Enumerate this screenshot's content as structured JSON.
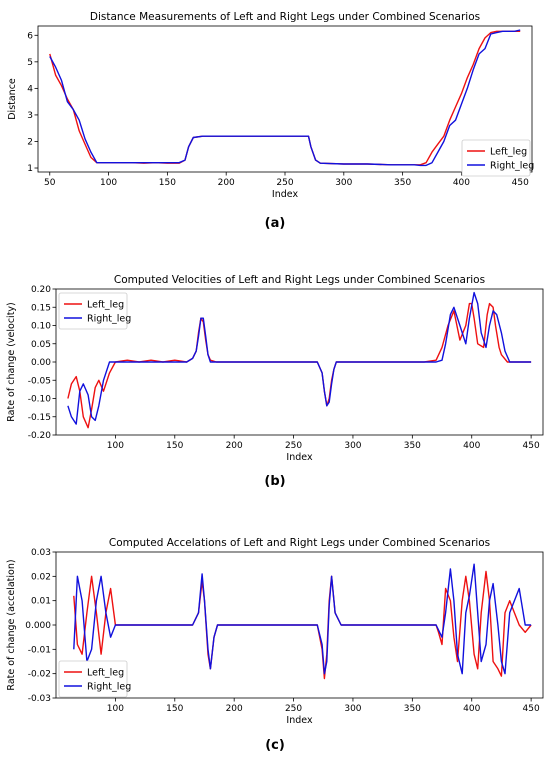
{
  "colors": {
    "Left_leg": "#ee1111",
    "Right_leg": "#1111dd"
  },
  "panel_labels": [
    "(a)",
    "(b)",
    "(c)"
  ],
  "chart_data": [
    {
      "type": "line",
      "title": "Distance Measurements of Left and Right Legs under Combined Scenarios",
      "xlabel": "Index",
      "ylabel": "Distance",
      "xlim": [
        40,
        460
      ],
      "ylim": [
        0.85,
        6.35
      ],
      "xticks": [
        50,
        100,
        150,
        200,
        250,
        300,
        350,
        400,
        450
      ],
      "yticks": [
        1,
        2,
        3,
        4,
        5,
        6
      ],
      "legend": "lower-right",
      "grid": false,
      "series": [
        {
          "name": "Left_leg",
          "color": "#ee1111",
          "x": [
            50,
            55,
            60,
            65,
            70,
            75,
            80,
            85,
            90,
            100,
            110,
            120,
            130,
            140,
            150,
            160,
            165,
            168,
            172,
            180,
            200,
            220,
            240,
            260,
            270,
            272,
            276,
            280,
            300,
            320,
            340,
            360,
            365,
            370,
            375,
            380,
            385,
            390,
            395,
            400,
            405,
            410,
            415,
            420,
            425,
            430,
            435,
            440,
            445,
            450
          ],
          "y": [
            5.3,
            4.5,
            4.1,
            3.6,
            3.2,
            2.4,
            1.9,
            1.4,
            1.2,
            1.2,
            1.2,
            1.2,
            1.18,
            1.2,
            1.18,
            1.18,
            1.3,
            1.8,
            2.15,
            2.2,
            2.2,
            2.2,
            2.2,
            2.2,
            2.2,
            1.8,
            1.3,
            1.18,
            1.15,
            1.15,
            1.12,
            1.12,
            1.12,
            1.2,
            1.6,
            1.9,
            2.2,
            2.8,
            3.3,
            3.8,
            4.4,
            4.9,
            5.5,
            5.9,
            6.1,
            6.15,
            6.15,
            6.15,
            6.15,
            6.15
          ]
        },
        {
          "name": "Right_leg",
          "color": "#1111dd",
          "x": [
            50,
            55,
            60,
            65,
            70,
            75,
            80,
            85,
            90,
            100,
            110,
            120,
            130,
            140,
            150,
            160,
            165,
            168,
            172,
            180,
            200,
            220,
            240,
            260,
            270,
            272,
            276,
            280,
            300,
            320,
            340,
            360,
            365,
            370,
            375,
            380,
            385,
            390,
            395,
            400,
            405,
            410,
            415,
            420,
            425,
            430,
            435,
            440,
            445,
            450
          ],
          "y": [
            5.2,
            4.8,
            4.3,
            3.5,
            3.2,
            2.8,
            2.1,
            1.6,
            1.2,
            1.2,
            1.2,
            1.2,
            1.2,
            1.2,
            1.2,
            1.2,
            1.3,
            1.8,
            2.15,
            2.2,
            2.2,
            2.2,
            2.2,
            2.2,
            2.2,
            1.8,
            1.3,
            1.18,
            1.15,
            1.15,
            1.12,
            1.12,
            1.1,
            1.1,
            1.2,
            1.6,
            2.0,
            2.6,
            2.8,
            3.4,
            4.0,
            4.7,
            5.3,
            5.5,
            6.05,
            6.1,
            6.15,
            6.15,
            6.15,
            6.2
          ]
        }
      ]
    },
    {
      "type": "line",
      "title": "Computed Velocities of Left and Right Legs under Combined Scenarios",
      "xlabel": "Index",
      "ylabel": "Rate of change (velocity)",
      "xlim": [
        50,
        460
      ],
      "ylim": [
        -0.2,
        0.2
      ],
      "xticks": [
        100,
        150,
        200,
        250,
        300,
        350,
        400,
        450
      ],
      "yticks": [
        -0.2,
        -0.15,
        -0.1,
        -0.05,
        0.0,
        0.05,
        0.1,
        0.15,
        0.2
      ],
      "ytick_labels": [
        "-0.20",
        "-0.15",
        "-0.10",
        "-0.05",
        "0.00",
        "0.05",
        "0.10",
        "0.15",
        "0.20"
      ],
      "legend": "upper-left",
      "grid": false,
      "series": [
        {
          "name": "Left_leg",
          "color": "#ee1111",
          "x": [
            60,
            63,
            67,
            70,
            73,
            77,
            80,
            83,
            86,
            90,
            95,
            100,
            110,
            120,
            130,
            140,
            150,
            160,
            165,
            168,
            170,
            172,
            174,
            176,
            178,
            180,
            185,
            200,
            220,
            240,
            260,
            270,
            274,
            276,
            278,
            280,
            282,
            284,
            286,
            290,
            300,
            320,
            340,
            360,
            370,
            375,
            380,
            385,
            390,
            395,
            398,
            400,
            402,
            405,
            410,
            413,
            415,
            418,
            420,
            423,
            425,
            430,
            435,
            440,
            445,
            450
          ],
          "y": [
            -0.1,
            -0.06,
            -0.04,
            -0.08,
            -0.15,
            -0.18,
            -0.13,
            -0.07,
            -0.05,
            -0.08,
            -0.03,
            0.0,
            0.005,
            0.0,
            0.005,
            0.0,
            0.005,
            0.0,
            0.01,
            0.03,
            0.08,
            0.12,
            0.11,
            0.06,
            0.02,
            0.005,
            0.0,
            0.0,
            0.0,
            0.0,
            0.0,
            0.0,
            -0.03,
            -0.08,
            -0.12,
            -0.1,
            -0.05,
            -0.02,
            0.0,
            0.0,
            0.0,
            0.0,
            0.0,
            0.0,
            0.005,
            0.04,
            0.1,
            0.14,
            0.06,
            0.1,
            0.16,
            0.16,
            0.12,
            0.05,
            0.04,
            0.13,
            0.16,
            0.15,
            0.1,
            0.04,
            0.02,
            0.0,
            0.0,
            0.0,
            0.0,
            0.0
          ]
        },
        {
          "name": "Right_leg",
          "color": "#1111dd",
          "x": [
            60,
            63,
            67,
            70,
            73,
            77,
            80,
            83,
            86,
            90,
            95,
            100,
            110,
            120,
            130,
            140,
            150,
            160,
            165,
            168,
            170,
            172,
            174,
            176,
            178,
            180,
            185,
            200,
            220,
            240,
            260,
            270,
            274,
            276,
            278,
            280,
            282,
            284,
            286,
            290,
            300,
            320,
            340,
            360,
            370,
            375,
            378,
            382,
            385,
            390,
            395,
            398,
            402,
            405,
            408,
            412,
            415,
            418,
            421,
            425,
            428,
            432,
            440,
            445,
            450
          ],
          "y": [
            -0.12,
            -0.15,
            -0.17,
            -0.08,
            -0.06,
            -0.09,
            -0.15,
            -0.16,
            -0.12,
            -0.05,
            0.0,
            0.0,
            0.0,
            0.0,
            0.0,
            0.0,
            0.0,
            0.0,
            0.01,
            0.03,
            0.07,
            0.12,
            0.12,
            0.07,
            0.02,
            0.0,
            0.0,
            0.0,
            0.0,
            0.0,
            0.0,
            0.0,
            -0.03,
            -0.08,
            -0.12,
            -0.11,
            -0.06,
            -0.02,
            0.0,
            0.0,
            0.0,
            0.0,
            0.0,
            0.0,
            0.0,
            0.005,
            0.05,
            0.13,
            0.15,
            0.1,
            0.05,
            0.12,
            0.19,
            0.16,
            0.08,
            0.04,
            0.1,
            0.14,
            0.13,
            0.08,
            0.03,
            0.0,
            0.0,
            0.0,
            0.0
          ]
        }
      ]
    },
    {
      "type": "line",
      "title": "Computed Accelations of Left and Right Legs under Combined Scenarios",
      "xlabel": "Index",
      "ylabel": "Rate of change (accelation)",
      "xlim": [
        50,
        460
      ],
      "ylim": [
        -0.03,
        0.03
      ],
      "xticks": [
        100,
        150,
        200,
        250,
        300,
        350,
        400,
        450
      ],
      "yticks": [
        -0.03,
        -0.02,
        -0.01,
        0.0,
        0.01,
        0.02,
        0.03
      ],
      "ytick_labels": [
        "-0.03",
        "-0.02",
        "-0.01",
        "0.000",
        "0.01",
        "0.02",
        "0.03"
      ],
      "legend": "lower-left",
      "grid": false,
      "series": [
        {
          "name": "Left_leg",
          "color": "#ee1111",
          "x": [
            65,
            68,
            72,
            76,
            80,
            84,
            88,
            92,
            96,
            100,
            110,
            120,
            130,
            140,
            150,
            160,
            165,
            170,
            173,
            175,
            178,
            180,
            183,
            186,
            190,
            200,
            220,
            240,
            260,
            270,
            274,
            276,
            278,
            280,
            282,
            285,
            290,
            300,
            320,
            340,
            360,
            370,
            372,
            375,
            378,
            382,
            385,
            388,
            392,
            395,
            398,
            402,
            405,
            408,
            412,
            415,
            418,
            422,
            425,
            428,
            432,
            440,
            445,
            450
          ],
          "y": [
            0.012,
            -0.008,
            -0.012,
            0.005,
            0.02,
            0.005,
            -0.012,
            0.005,
            0.015,
            0.0,
            0.0,
            0.0,
            0.0,
            0.0,
            0.0,
            0.0,
            0.0,
            0.005,
            0.018,
            0.01,
            -0.012,
            -0.018,
            -0.005,
            0.0,
            0.0,
            0.0,
            0.0,
            0.0,
            0.0,
            0.0,
            -0.01,
            -0.022,
            -0.012,
            0.01,
            0.02,
            0.005,
            0.0,
            0.0,
            0.0,
            0.0,
            0.0,
            0.0,
            -0.003,
            -0.008,
            0.015,
            0.01,
            -0.005,
            -0.015,
            0.01,
            0.02,
            0.01,
            -0.012,
            -0.018,
            0.005,
            0.022,
            0.01,
            -0.015,
            -0.018,
            -0.021,
            0.005,
            0.01,
            0.0,
            -0.003,
            0.0
          ]
        },
        {
          "name": "Right_leg",
          "color": "#1111dd",
          "x": [
            65,
            68,
            72,
            76,
            80,
            84,
            88,
            92,
            96,
            100,
            110,
            120,
            130,
            140,
            150,
            160,
            165,
            170,
            173,
            175,
            178,
            180,
            183,
            186,
            190,
            200,
            220,
            240,
            260,
            270,
            274,
            276,
            278,
            280,
            282,
            285,
            290,
            300,
            320,
            340,
            360,
            370,
            375,
            378,
            382,
            385,
            388,
            392,
            395,
            398,
            402,
            405,
            408,
            412,
            415,
            418,
            422,
            425,
            428,
            432,
            440,
            445,
            450
          ],
          "y": [
            -0.01,
            0.02,
            0.01,
            -0.015,
            -0.01,
            0.01,
            0.02,
            0.005,
            -0.005,
            0.0,
            0.0,
            0.0,
            0.0,
            0.0,
            0.0,
            0.0,
            0.0,
            0.005,
            0.021,
            0.01,
            -0.01,
            -0.018,
            -0.005,
            0.0,
            0.0,
            0.0,
            0.0,
            0.0,
            0.0,
            0.0,
            -0.008,
            -0.02,
            -0.015,
            0.008,
            0.02,
            0.005,
            0.0,
            0.0,
            0.0,
            0.0,
            0.0,
            0.0,
            -0.005,
            0.005,
            0.023,
            0.01,
            -0.012,
            -0.02,
            0.005,
            0.012,
            0.025,
            0.005,
            -0.015,
            -0.008,
            0.01,
            0.017,
            0.0,
            -0.015,
            -0.02,
            0.005,
            0.015,
            0.0,
            0.0
          ]
        }
      ]
    }
  ]
}
